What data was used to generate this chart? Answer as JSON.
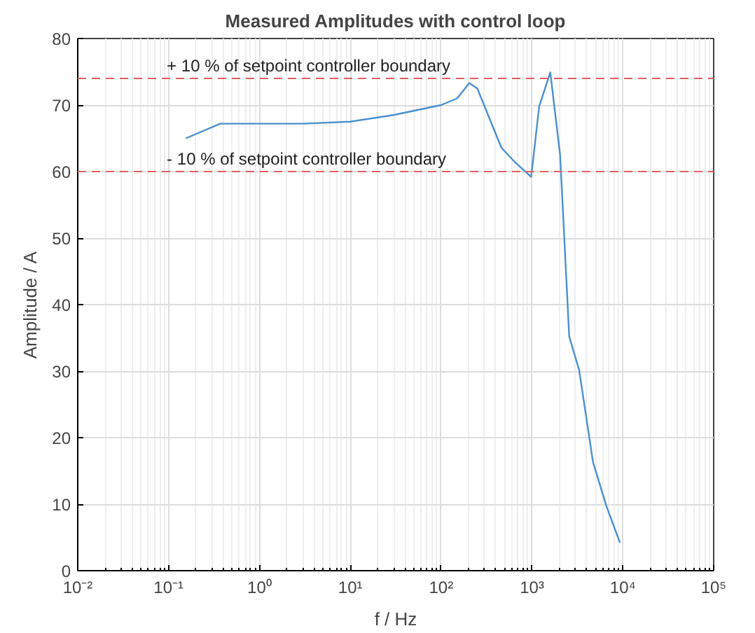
{
  "chart_data": {
    "type": "line",
    "title": "Measured Amplitudes with control loop",
    "xlabel": "f / Hz",
    "ylabel": "Amplitude / A",
    "log": "x",
    "grid": true,
    "xlim": [
      0.01,
      100000
    ],
    "xticks": [
      {
        "value": 0.01,
        "label": "10⁻²"
      },
      {
        "value": 0.1,
        "label": "10⁻¹"
      },
      {
        "value": 1,
        "label": "10⁰"
      },
      {
        "value": 10,
        "label": "10¹"
      },
      {
        "value": 100,
        "label": "10²"
      },
      {
        "value": 1000,
        "label": "10³"
      },
      {
        "value": 10000,
        "label": "10⁴"
      },
      {
        "value": 100000,
        "label": "10⁵"
      }
    ],
    "ylim": [
      0,
      80
    ],
    "yticks": [
      0,
      10,
      20,
      30,
      40,
      50,
      60,
      70,
      80
    ],
    "series": [
      {
        "color": "#4a90d0",
        "x": [
          0.155,
          0.37,
          1,
          3,
          10,
          30,
          100,
          150,
          204,
          250,
          460,
          650,
          980,
          1200,
          1590,
          2040,
          2570,
          3300,
          4700,
          6600,
          9300
        ],
        "values": [
          65.0,
          67.2,
          67.2,
          67.2,
          67.5,
          68.5,
          70.0,
          71.0,
          73.3,
          72.5,
          63.6,
          61.4,
          59.2,
          69.8,
          74.9,
          62.5,
          35.2,
          30.2,
          16.3,
          9.7,
          4.2
        ]
      }
    ],
    "ref_lines": [
      {
        "axis": "y",
        "value": 74,
        "label": "+ 10 % of setpoint controller boundary",
        "color": "#e06060",
        "line_style": "dashed"
      },
      {
        "axis": "y",
        "value": 60,
        "label": "- 10 % of setpoint controller boundary",
        "color": "#e06060",
        "line_style": "dashed"
      }
    ]
  }
}
